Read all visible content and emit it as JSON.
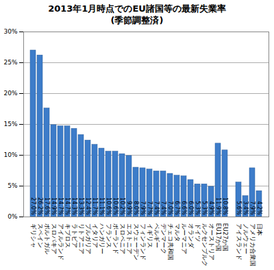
{
  "chart_data": {
    "type": "bar",
    "title": "2013年1月時点でのEU諸国等の最新失業率",
    "subtitle": "(季節調整済)",
    "categories": [
      "ギリシャ",
      "スペイン",
      "ポルトガル",
      "スロバキア",
      "アイルランド",
      "キプロス",
      "ラトビア",
      "リトアニア",
      "ブルガリア",
      "イタリア",
      "ハンガリー",
      "フランス",
      "ポーランド",
      "スロベニア",
      "エストニア",
      "スウェーデン",
      "フィンランド",
      "イギリス",
      "ベルギー",
      "デンマーク",
      "チェコ共和国",
      "マルタ",
      "ルーマニア",
      "オランダ",
      "ドイツ",
      "ルクセンブルク",
      "オーストリア",
      "EU17か国",
      "EU27か国",
      null,
      "アイスランド",
      "ノルウェー",
      "アメリカ合衆国",
      "日本"
    ],
    "values": [
      27.0,
      26.2,
      17.6,
      14.9,
      14.7,
      14.7,
      14.3,
      13.3,
      12.4,
      11.7,
      11.1,
      10.6,
      10.6,
      10.2,
      9.9,
      8.0,
      7.9,
      7.7,
      7.4,
      7.4,
      7.0,
      6.7,
      6.6,
      6.0,
      5.3,
      5.3,
      4.9,
      11.9,
      10.8,
      null,
      5.6,
      3.4,
      7.9,
      4.2
    ],
    "value_labels": [
      "27.0%",
      "26.2%",
      "17.6%",
      "14.9%",
      "14.7%",
      "14.7%",
      "14.3%",
      "13.3%",
      "12.4%",
      "11.7%",
      "11.1%",
      "10.6%",
      "10.6%",
      "10.2%",
      "9.9%",
      "8.0%",
      "7.9%",
      "7.7%",
      "7.4%",
      "7.4%",
      "7.0%",
      "6.7%",
      "6.6%",
      "6.0%",
      "5.3%",
      "5.3%",
      "4.9%",
      "11.9%",
      "10.8%",
      null,
      "5.6%",
      "3.4%",
      "7.9%",
      "4.2%"
    ],
    "data_labels": true,
    "color": "#3d7cc9",
    "ylim": [
      0,
      30
    ],
    "yticks": [
      {
        "value": 0,
        "label": "0%"
      },
      {
        "value": 5,
        "label": "5%"
      },
      {
        "value": 10,
        "label": "10%"
      },
      {
        "value": 15,
        "label": "15%"
      },
      {
        "value": 20,
        "label": "20%"
      },
      {
        "value": 25,
        "label": "25%"
      },
      {
        "value": 30,
        "label": "30%"
      }
    ],
    "grid": true
  }
}
